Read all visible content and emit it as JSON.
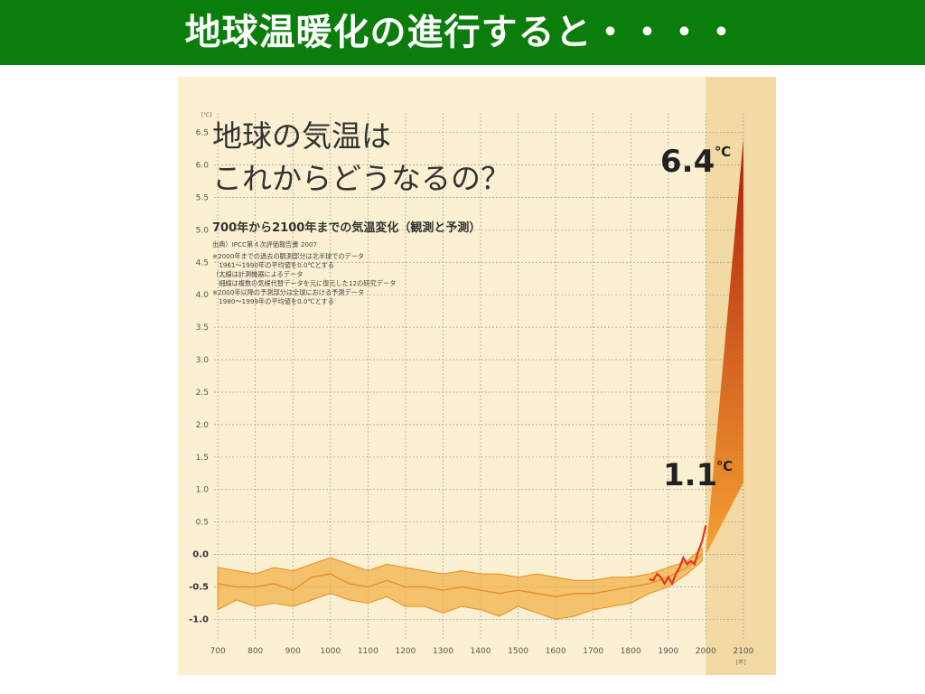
{
  "slide": {
    "title": "地球温暖化の進行すると・・・・"
  },
  "chart_data": {
    "type": "area",
    "title": "地球の気温は",
    "title_line2": "これからどうなるの？",
    "subtitle": "700年から2100年までの気温変化（観測と予測）",
    "source": "出典）IPCC第４次評価報告書 2007",
    "notes": [
      "※2000年までの過去の観測部分は北半球でのデータ",
      "　1961〜1990年の平均値を0.0℃とする",
      "（太線は計測機器によるデータ",
      "　細線は複数の気候代替データを元に復元した12の研究データ",
      "※2000年以降の予測部分は全球における予測データ",
      "　1980〜1999年の平均値を0.0℃とする"
    ],
    "y_unit": "[℃]",
    "x_unit": "[年]",
    "xlim": [
      690,
      2105
    ],
    "ylim": [
      -1.3,
      6.8
    ],
    "x_ticks": [
      700,
      800,
      900,
      1000,
      1100,
      1200,
      1300,
      1400,
      1500,
      1600,
      1700,
      1800,
      1900,
      2000,
      2100
    ],
    "y_ticks": [
      6.5,
      6.0,
      5.5,
      5.0,
      4.5,
      4.0,
      3.5,
      3.0,
      2.5,
      2.0,
      1.5,
      1.0,
      0.5,
      0.0,
      -0.5,
      -1.0
    ],
    "y_tick_labels": [
      "6.5",
      "6.0",
      "5.5",
      "5.0",
      "4.5",
      "4.0",
      "3.5",
      "3.0",
      "2.5",
      "2.0",
      "1.5",
      "1.0",
      "0.5",
      "0.0",
      "-0.5",
      "-1.0"
    ],
    "grid": true,
    "forecast_region": [
      2000,
      2105
    ],
    "reconstruction_range": {
      "x": [
        700,
        750,
        800,
        850,
        900,
        950,
        1000,
        1050,
        1100,
        1150,
        1200,
        1250,
        1300,
        1350,
        1400,
        1450,
        1500,
        1550,
        1600,
        1650,
        1700,
        1750,
        1800,
        1850,
        1900,
        1950,
        1990
      ],
      "upper": [
        -0.2,
        -0.25,
        -0.3,
        -0.2,
        -0.25,
        -0.15,
        -0.05,
        -0.15,
        -0.25,
        -0.15,
        -0.2,
        -0.25,
        -0.3,
        -0.25,
        -0.3,
        -0.3,
        -0.35,
        -0.3,
        -0.35,
        -0.4,
        -0.4,
        -0.35,
        -0.35,
        -0.3,
        -0.2,
        -0.1,
        0.1
      ],
      "lower": [
        -0.85,
        -0.7,
        -0.8,
        -0.75,
        -0.8,
        -0.7,
        -0.6,
        -0.7,
        -0.75,
        -0.65,
        -0.8,
        -0.8,
        -0.9,
        -0.8,
        -0.85,
        -0.95,
        -0.8,
        -0.9,
        -1.0,
        -0.95,
        -0.85,
        -0.8,
        -0.75,
        -0.6,
        -0.5,
        -0.3,
        -0.1
      ]
    },
    "reconstruction_mean": {
      "x": [
        700,
        750,
        800,
        850,
        900,
        950,
        1000,
        1050,
        1100,
        1150,
        1200,
        1250,
        1300,
        1350,
        1400,
        1450,
        1500,
        1550,
        1600,
        1650,
        1700,
        1750,
        1800,
        1850,
        1900,
        1950,
        1990
      ],
      "y": [
        -0.45,
        -0.5,
        -0.5,
        -0.45,
        -0.55,
        -0.35,
        -0.3,
        -0.45,
        -0.5,
        -0.4,
        -0.5,
        -0.5,
        -0.55,
        -0.5,
        -0.55,
        -0.6,
        -0.55,
        -0.6,
        -0.65,
        -0.6,
        -0.6,
        -0.55,
        -0.5,
        -0.45,
        -0.35,
        -0.2,
        0.0
      ]
    },
    "instrumental": {
      "x": [
        1850,
        1860,
        1870,
        1880,
        1890,
        1900,
        1910,
        1920,
        1930,
        1940,
        1950,
        1960,
        1970,
        1980,
        1990,
        2000
      ],
      "y": [
        -0.38,
        -0.4,
        -0.3,
        -0.35,
        -0.45,
        -0.35,
        -0.45,
        -0.3,
        -0.2,
        -0.05,
        -0.15,
        -0.1,
        -0.15,
        0.05,
        0.2,
        0.45
      ]
    },
    "projection": {
      "x_start": 2000,
      "x_end": 2100,
      "start_value": 0.0,
      "upper_end": 6.4,
      "lower_end": 1.1
    },
    "annotations": {
      "high_value": "6.4",
      "low_value": "1.1",
      "unit": "℃"
    },
    "colors": {
      "band": "#f2b04a",
      "band_line": "#e88d1f",
      "instrumental": "#e8341a",
      "projection_top": "#b01e0c",
      "projection_bottom": "#f5a133",
      "forecast_bg": "#f3d9a4",
      "grid": "#9a9a9a",
      "panel_bg": "#fbf1d2"
    }
  }
}
